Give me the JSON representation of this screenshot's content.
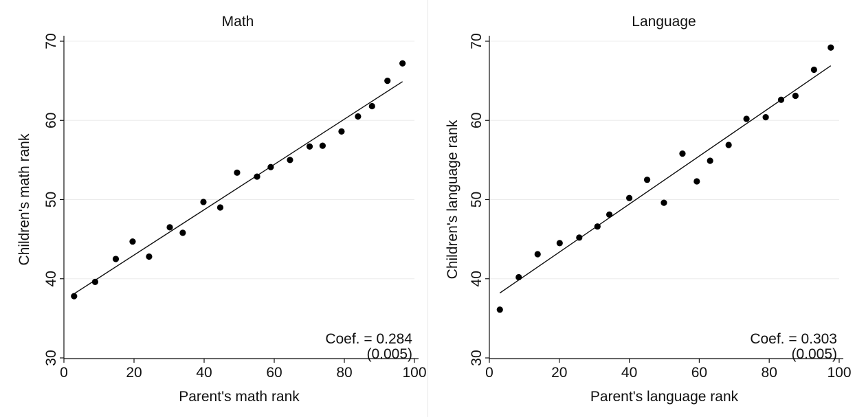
{
  "chart_data": [
    {
      "type": "scatter",
      "title": "Math",
      "xlabel": "Parent's math rank",
      "ylabel": "Children's math rank",
      "xlim": [
        0,
        100
      ],
      "ylim": [
        30,
        70
      ],
      "xticks": [
        0,
        20,
        40,
        60,
        80,
        100
      ],
      "yticks": [
        30,
        40,
        50,
        60,
        70
      ],
      "grid": "horizontal",
      "points": [
        {
          "x": 2.9,
          "y": 37.8
        },
        {
          "x": 8.9,
          "y": 39.6
        },
        {
          "x": 14.8,
          "y": 42.5
        },
        {
          "x": 19.6,
          "y": 44.7
        },
        {
          "x": 24.3,
          "y": 42.8
        },
        {
          "x": 30.2,
          "y": 46.5
        },
        {
          "x": 33.9,
          "y": 45.8
        },
        {
          "x": 39.8,
          "y": 49.7
        },
        {
          "x": 44.6,
          "y": 49.0
        },
        {
          "x": 49.4,
          "y": 53.4
        },
        {
          "x": 55.1,
          "y": 52.9
        },
        {
          "x": 59.0,
          "y": 54.1
        },
        {
          "x": 64.5,
          "y": 55.0
        },
        {
          "x": 70.1,
          "y": 56.7
        },
        {
          "x": 73.8,
          "y": 56.8
        },
        {
          "x": 79.2,
          "y": 58.6
        },
        {
          "x": 83.9,
          "y": 60.5
        },
        {
          "x": 87.9,
          "y": 61.8
        },
        {
          "x": 92.3,
          "y": 65.0
        },
        {
          "x": 96.6,
          "y": 67.2
        }
      ],
      "fit_line": [
        {
          "x": 2.9,
          "y": 38.1
        },
        {
          "x": 96.6,
          "y": 64.9
        }
      ],
      "annotation": {
        "line1": "Coef. = 0.284",
        "line2": "(0.005)"
      }
    },
    {
      "type": "scatter",
      "title": "Language",
      "xlabel": "Parent's language rank",
      "ylabel": "Children's language rank",
      "xlim": [
        0,
        100
      ],
      "ylim": [
        30,
        70
      ],
      "xticks": [
        0,
        20,
        40,
        60,
        80,
        100
      ],
      "yticks": [
        30,
        40,
        50,
        60,
        70
      ],
      "grid": "horizontal",
      "points": [
        {
          "x": 3.0,
          "y": 36.1
        },
        {
          "x": 8.4,
          "y": 40.2
        },
        {
          "x": 13.8,
          "y": 43.1
        },
        {
          "x": 20.1,
          "y": 44.5
        },
        {
          "x": 25.7,
          "y": 45.2
        },
        {
          "x": 30.9,
          "y": 46.6
        },
        {
          "x": 34.3,
          "y": 48.1
        },
        {
          "x": 40.0,
          "y": 50.2
        },
        {
          "x": 45.1,
          "y": 52.5
        },
        {
          "x": 49.9,
          "y": 49.6
        },
        {
          "x": 55.2,
          "y": 55.8
        },
        {
          "x": 59.3,
          "y": 52.3
        },
        {
          "x": 63.1,
          "y": 54.9
        },
        {
          "x": 68.4,
          "y": 56.9
        },
        {
          "x": 73.5,
          "y": 60.2
        },
        {
          "x": 79.0,
          "y": 60.4
        },
        {
          "x": 83.4,
          "y": 62.6
        },
        {
          "x": 87.5,
          "y": 63.1
        },
        {
          "x": 92.8,
          "y": 66.4
        },
        {
          "x": 97.6,
          "y": 69.2
        }
      ],
      "fit_line": [
        {
          "x": 3.0,
          "y": 38.2
        },
        {
          "x": 97.6,
          "y": 66.9
        }
      ],
      "annotation": {
        "line1": "Coef. = 0.303",
        "line2": "(0.005)"
      }
    }
  ]
}
